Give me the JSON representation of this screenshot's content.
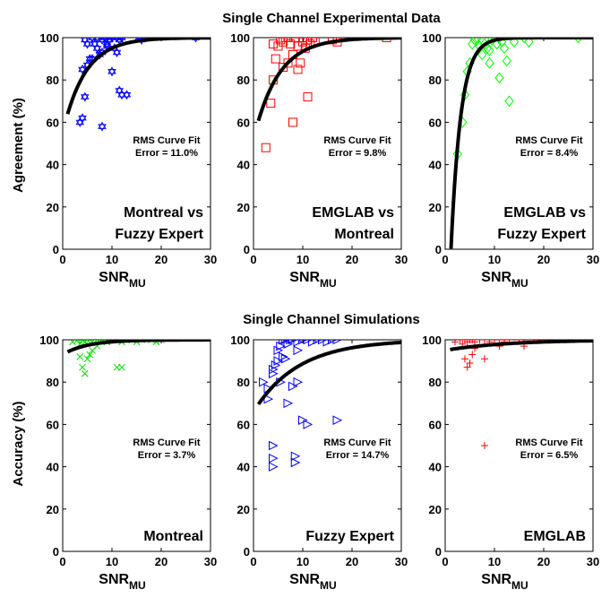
{
  "figure": {
    "top_title": "Single Channel Experimental Data",
    "bottom_title": "Single Channel Simulations",
    "top_ylabel": "Agreement (%)",
    "bottom_ylabel": "Accuracy (%)",
    "xlabel_main": "SNR",
    "xlabel_sub": "MU",
    "rms_heading": "RMS Curve Fit"
  },
  "chart_data": [
    {
      "type": "scatter",
      "row": 0,
      "col": 0,
      "label_lines": [
        "Montreal vs",
        "Fuzzy Expert"
      ],
      "rms": "Error = 11.0%",
      "marker": "hexagram",
      "color": "#0000ff",
      "xlim": [
        0,
        30
      ],
      "ylim": [
        0,
        100
      ],
      "xticks": [
        0,
        10,
        20,
        30
      ],
      "yticks": [
        0,
        20,
        40,
        60,
        80,
        100
      ],
      "fit": {
        "ymax": 100,
        "ymin": 55,
        "rate": 0.22
      },
      "points": [
        [
          3.5,
          60
        ],
        [
          4,
          62
        ],
        [
          4.5,
          72
        ],
        [
          4,
          85
        ],
        [
          5,
          87
        ],
        [
          5.5,
          90
        ],
        [
          4.5,
          99
        ],
        [
          5,
          97
        ],
        [
          6,
          100
        ],
        [
          6.5,
          97
        ],
        [
          7,
          95
        ],
        [
          7.5,
          92
        ],
        [
          8,
          99
        ],
        [
          8.5,
          100
        ],
        [
          9,
          97
        ],
        [
          9.5,
          99
        ],
        [
          10,
          100
        ],
        [
          10.5,
          95
        ],
        [
          11,
          100
        ],
        [
          11.5,
          99
        ],
        [
          12,
          100
        ],
        [
          10,
          84
        ],
        [
          11.5,
          75
        ],
        [
          12,
          73
        ],
        [
          13,
          73
        ],
        [
          8,
          58
        ],
        [
          9,
          96
        ],
        [
          11,
          93
        ],
        [
          7,
          100
        ],
        [
          15.5,
          100
        ],
        [
          16,
          99
        ],
        [
          27,
          100
        ],
        [
          6,
          90
        ],
        [
          8,
          93
        ]
      ]
    },
    {
      "type": "scatter",
      "row": 0,
      "col": 1,
      "label_lines": [
        "EMGLAB vs",
        "Montreal"
      ],
      "rms": "Error = 9.8%",
      "marker": "square",
      "color": "#ff0000",
      "xlim": [
        0,
        30
      ],
      "ylim": [
        0,
        100
      ],
      "xticks": [
        0,
        10,
        20,
        30
      ],
      "yticks": [
        0,
        20,
        40,
        60,
        80,
        100
      ],
      "fit": {
        "ymax": 100,
        "ymin": 52,
        "rate": 0.2
      },
      "points": [
        [
          2.5,
          48
        ],
        [
          3.5,
          69
        ],
        [
          4,
          80
        ],
        [
          4.5,
          90
        ],
        [
          4,
          97
        ],
        [
          5,
          96
        ],
        [
          5.5,
          99
        ],
        [
          6,
          98
        ],
        [
          6.5,
          100
        ],
        [
          7,
          100
        ],
        [
          7.5,
          97
        ],
        [
          8,
          92
        ],
        [
          8.5,
          100
        ],
        [
          9,
          96
        ],
        [
          9.5,
          88
        ],
        [
          10,
          98
        ],
        [
          10.5,
          95
        ],
        [
          11,
          99
        ],
        [
          11.5,
          97
        ],
        [
          12,
          100
        ],
        [
          12.5,
          98
        ],
        [
          8,
          60
        ],
        [
          11,
          72
        ],
        [
          6,
          86
        ],
        [
          9,
          85
        ],
        [
          16,
          99
        ],
        [
          17,
          98
        ],
        [
          27,
          100
        ],
        [
          7,
          88
        ],
        [
          10,
          100
        ]
      ]
    },
    {
      "type": "scatter",
      "row": 0,
      "col": 2,
      "label_lines": [
        "EMGLAB vs",
        "Fuzzy Expert"
      ],
      "rms": "Error = 8.4%",
      "marker": "diamond",
      "color": "#00ff00",
      "xlim": [
        0,
        30
      ],
      "ylim": [
        0,
        100
      ],
      "xticks": [
        0,
        10,
        20,
        30
      ],
      "yticks": [
        0,
        20,
        40,
        60,
        80,
        100
      ],
      "fit": {
        "ymax": 100,
        "ymin": -80,
        "rate": 0.5
      },
      "points": [
        [
          2.5,
          45
        ],
        [
          3.5,
          60
        ],
        [
          4,
          73
        ],
        [
          4.5,
          84
        ],
        [
          5,
          88
        ],
        [
          5.5,
          97
        ],
        [
          6,
          99
        ],
        [
          6.5,
          100
        ],
        [
          7,
          96
        ],
        [
          7.5,
          92
        ],
        [
          8,
          97
        ],
        [
          8.5,
          95
        ],
        [
          9,
          94
        ],
        [
          9.5,
          99
        ],
        [
          10,
          100
        ],
        [
          10.5,
          97
        ],
        [
          11,
          100
        ],
        [
          11.5,
          98
        ],
        [
          12,
          95
        ],
        [
          11,
          81
        ],
        [
          13,
          70
        ],
        [
          14,
          98
        ],
        [
          16,
          100
        ],
        [
          17,
          98
        ],
        [
          27,
          100
        ],
        [
          9,
          88
        ],
        [
          12.5,
          89
        ]
      ]
    },
    {
      "type": "scatter",
      "row": 1,
      "col": 0,
      "label_lines": [
        "Montreal"
      ],
      "rms": "Error = 3.7%",
      "marker": "x",
      "color": "#00dd00",
      "xlim": [
        0,
        30
      ],
      "ylim": [
        0,
        100
      ],
      "xticks": [
        0,
        10,
        20,
        30
      ],
      "yticks": [
        0,
        20,
        40,
        60,
        80,
        100
      ],
      "fit": {
        "ymax": 100,
        "ymin": 93,
        "rate": 0.2
      },
      "points": [
        [
          2,
          99
        ],
        [
          3,
          100
        ],
        [
          3.5,
          98
        ],
        [
          4,
          100
        ],
        [
          4.5,
          99
        ],
        [
          5,
          100
        ],
        [
          5.5,
          100
        ],
        [
          6,
          99
        ],
        [
          7,
          100
        ],
        [
          8,
          100
        ],
        [
          9,
          99
        ],
        [
          10,
          100
        ],
        [
          11,
          100
        ],
        [
          12,
          99
        ],
        [
          13,
          100
        ],
        [
          14,
          100
        ],
        [
          15,
          99
        ],
        [
          16,
          100
        ],
        [
          18,
          100
        ],
        [
          19,
          99
        ],
        [
          20,
          100
        ],
        [
          4,
          87
        ],
        [
          4.5,
          84
        ],
        [
          5,
          91
        ],
        [
          5.5,
          93
        ],
        [
          11,
          87
        ],
        [
          12,
          87
        ],
        [
          6,
          95
        ],
        [
          3.5,
          92
        ],
        [
          7,
          97
        ]
      ]
    },
    {
      "type": "scatter",
      "row": 1,
      "col": 1,
      "label_lines": [
        "Fuzzy Expert"
      ],
      "rms": "Error = 14.7%",
      "marker": "triangle-right",
      "color": "#0000ff",
      "xlim": [
        0,
        30
      ],
      "ylim": [
        0,
        100
      ],
      "xticks": [
        0,
        10,
        20,
        30
      ],
      "yticks": [
        0,
        20,
        40,
        60,
        80,
        100
      ],
      "fit": {
        "ymax": 100,
        "ymin": 66,
        "rate": 0.11
      },
      "points": [
        [
          2,
          80
        ],
        [
          3,
          72
        ],
        [
          3,
          77
        ],
        [
          4,
          84
        ],
        [
          4,
          86
        ],
        [
          4.5,
          88
        ],
        [
          5,
          90
        ],
        [
          5,
          95
        ],
        [
          5.5,
          97
        ],
        [
          6,
          92
        ],
        [
          6.5,
          100
        ],
        [
          7,
          98
        ],
        [
          7.5,
          100
        ],
        [
          8,
          100
        ],
        [
          9,
          99
        ],
        [
          10,
          100
        ],
        [
          11,
          100
        ],
        [
          12,
          99
        ],
        [
          13,
          100
        ],
        [
          14,
          100
        ],
        [
          15,
          99
        ],
        [
          16,
          100
        ],
        [
          17,
          100
        ],
        [
          4,
          50
        ],
        [
          4,
          40
        ],
        [
          4,
          44
        ],
        [
          7,
          70
        ],
        [
          8,
          78
        ],
        [
          9,
          80
        ],
        [
          10,
          62
        ],
        [
          11,
          60
        ],
        [
          17,
          62
        ],
        [
          8.5,
          42
        ],
        [
          8.5,
          45
        ],
        [
          6,
          100
        ],
        [
          5.5,
          80
        ],
        [
          6.5,
          91
        ],
        [
          9,
          95
        ]
      ]
    },
    {
      "type": "scatter",
      "row": 1,
      "col": 2,
      "label_lines": [
        "EMGLAB"
      ],
      "rms": "Error = 6.5%",
      "marker": "plus",
      "color": "#ff0000",
      "xlim": [
        0,
        30
      ],
      "ylim": [
        0,
        100
      ],
      "xticks": [
        0,
        10,
        20,
        30
      ],
      "yticks": [
        0,
        20,
        40,
        60,
        80,
        100
      ],
      "fit": {
        "ymax": 100,
        "ymin": 95,
        "rate": 0.08
      },
      "points": [
        [
          2,
          99
        ],
        [
          3,
          100
        ],
        [
          3.5,
          98
        ],
        [
          4,
          100
        ],
        [
          4.5,
          99
        ],
        [
          5,
          100
        ],
        [
          5.5,
          100
        ],
        [
          6,
          99
        ],
        [
          7,
          100
        ],
        [
          8,
          100
        ],
        [
          9,
          99
        ],
        [
          10,
          100
        ],
        [
          11,
          100
        ],
        [
          12,
          99
        ],
        [
          13,
          100
        ],
        [
          15,
          100
        ],
        [
          16,
          99
        ],
        [
          18,
          100
        ],
        [
          20,
          100
        ],
        [
          23,
          100
        ],
        [
          4,
          91
        ],
        [
          4.5,
          87
        ],
        [
          5,
          89
        ],
        [
          5.5,
          93
        ],
        [
          8,
          91
        ],
        [
          8,
          50
        ],
        [
          6,
          96
        ],
        [
          11,
          97
        ],
        [
          16,
          97
        ]
      ]
    }
  ]
}
